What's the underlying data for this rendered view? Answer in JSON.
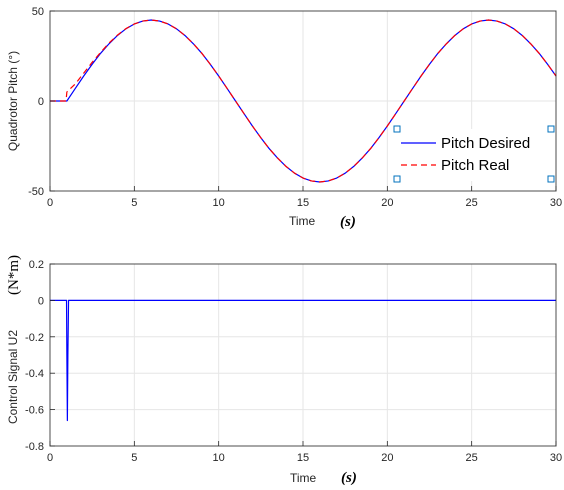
{
  "chart_data": [
    {
      "type": "line",
      "xlabel": "Time",
      "xunit": "(s)",
      "ylabel": "Quadrotor Pitch (°)",
      "xlim": [
        0,
        30
      ],
      "ylim": [
        -50,
        50
      ],
      "xticks": [
        "0",
        "5",
        "10",
        "15",
        "20",
        "25",
        "30"
      ],
      "yticks": [
        "-50",
        "0",
        "50"
      ],
      "grid": true,
      "legend_position": "bottom-right",
      "series": [
        {
          "name": "Pitch Desired",
          "color": "#0000ff",
          "style": "solid",
          "x": [
            0,
            1,
            1.5,
            2,
            2.5,
            3,
            3.5,
            4,
            4.5,
            5,
            5.5,
            6,
            6.5,
            7,
            7.5,
            8,
            8.5,
            9,
            9.5,
            10,
            10.5,
            11,
            11.5,
            12,
            12.5,
            13,
            13.5,
            14,
            14.5,
            15,
            15.5,
            16,
            16.5,
            17,
            17.5,
            18,
            18.5,
            19,
            19.5,
            20,
            20.5,
            21,
            21.5,
            22,
            22.5,
            23,
            23.5,
            24,
            24.5,
            25,
            25.5,
            26,
            26.5,
            27,
            27.5,
            28,
            28.5,
            29,
            29.5,
            30
          ],
          "y": [
            0,
            0,
            7.0,
            13.9,
            20.4,
            26.5,
            31.8,
            36.4,
            40.1,
            42.8,
            44.4,
            45.0,
            44.4,
            42.8,
            40.1,
            36.4,
            31.8,
            26.5,
            20.4,
            13.9,
            7.0,
            0,
            -7.0,
            -13.9,
            -20.4,
            -26.5,
            -31.8,
            -36.4,
            -40.1,
            -42.8,
            -44.4,
            -45.0,
            -44.4,
            -42.8,
            -40.1,
            -36.4,
            -31.8,
            -26.5,
            -20.4,
            -13.9,
            -7.0,
            0,
            7.0,
            13.9,
            20.4,
            26.5,
            31.8,
            36.4,
            40.1,
            42.8,
            44.4,
            45.0,
            44.4,
            42.8,
            40.1,
            36.4,
            31.8,
            26.5,
            20.4,
            13.9
          ]
        },
        {
          "name": "Pitch Real",
          "color": "#ff0000",
          "style": "dashed",
          "x": [
            0,
            0.95,
            1.0,
            1.5,
            2,
            2.5,
            3,
            3.5,
            4,
            4.5,
            5,
            5.5,
            6,
            6.5,
            7,
            7.5,
            8,
            8.5,
            9,
            9.5,
            10,
            10.5,
            11,
            11.5,
            12,
            12.5,
            13,
            13.5,
            14,
            14.5,
            15,
            15.5,
            16,
            16.5,
            17,
            17.5,
            18,
            18.5,
            19,
            19.5,
            20,
            20.5,
            21,
            21.5,
            22,
            22.5,
            23,
            23.5,
            24,
            24.5,
            25,
            25.5,
            26,
            26.5,
            27,
            27.5,
            28,
            28.5,
            29,
            29.5,
            30
          ],
          "y": [
            0,
            0,
            5.0,
            9.5,
            15.5,
            21.5,
            27.0,
            32.2,
            36.6,
            40.2,
            42.8,
            44.4,
            45.0,
            44.4,
            42.8,
            40.1,
            36.4,
            31.8,
            26.5,
            20.4,
            13.9,
            7.0,
            0,
            -7.0,
            -13.9,
            -20.4,
            -26.5,
            -31.8,
            -36.4,
            -40.1,
            -42.8,
            -44.4,
            -45.0,
            -44.4,
            -42.8,
            -40.1,
            -36.4,
            -31.8,
            -26.5,
            -20.4,
            -13.9,
            -7.0,
            0,
            7.0,
            13.9,
            20.4,
            26.5,
            31.8,
            36.4,
            40.1,
            42.8,
            44.4,
            45.0,
            44.4,
            42.8,
            40.1,
            36.4,
            31.8,
            26.5,
            20.4,
            13.9
          ]
        }
      ]
    },
    {
      "type": "line",
      "xlabel": "Time",
      "xunit": "(s)",
      "ylabel": "Control Signal U2",
      "yunit": "(N*m)",
      "xlim": [
        0,
        30
      ],
      "ylim": [
        -0.8,
        0.2
      ],
      "xticks": [
        "0",
        "5",
        "10",
        "15",
        "20",
        "25",
        "30"
      ],
      "yticks": [
        "-0.8",
        "-0.6",
        "-0.4",
        "-0.2",
        "0",
        "0.2"
      ],
      "grid": true,
      "series": [
        {
          "color": "#0000ff",
          "style": "solid",
          "x": [
            0,
            0.98,
            1.0,
            1.03,
            1.06,
            1.1,
            1.15,
            30
          ],
          "y": [
            0,
            0,
            -0.3,
            -0.66,
            -0.3,
            0,
            0,
            0
          ]
        }
      ]
    }
  ]
}
